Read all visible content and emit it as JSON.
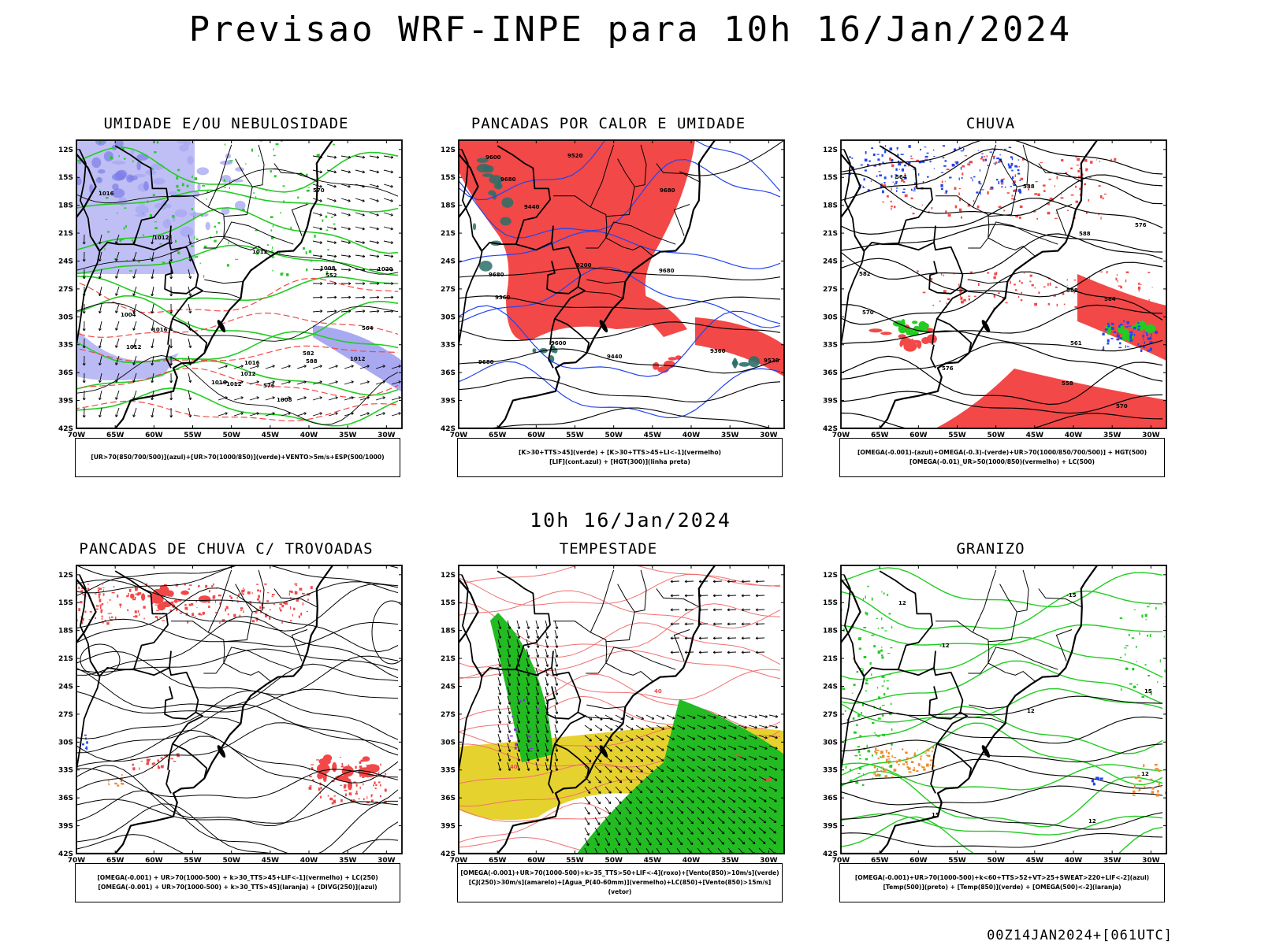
{
  "title": "Previsao WRF-INPE  para 10h 16/Jan/2024",
  "mid_title": "10h 16/Jan/2024",
  "footer": "00Z14JAN2024+[061UTC]",
  "axes": {
    "lat_labels": [
      "12S",
      "15S",
      "18S",
      "21S",
      "24S",
      "27S",
      "30S",
      "33S",
      "36S",
      "39S",
      "42S"
    ],
    "lon_labels": [
      "70W",
      "65W",
      "60W",
      "55W",
      "50W",
      "45W",
      "40W",
      "35W",
      "30W"
    ]
  },
  "colors": {
    "red": "#f24848",
    "green": "#22cc22",
    "blue": "#2244ee",
    "lavender": "#a9a9f2",
    "yellow": "#e6d22e",
    "orange": "#f08a2a",
    "teal": "#2d6e67",
    "purple": "#8a2be2"
  },
  "panels": [
    {
      "id": "umidade",
      "title": "UMIDADE E/OU NEBULOSIDADE",
      "legend": [
        "[UR>70(850/700/500)](azul)+[UR>70(1000/850)](verde)+VENTO>5m/s+ESP(500/1000)"
      ],
      "contour_labels": [
        "1016",
        "1016",
        "1012",
        "1016",
        "1020",
        "1012",
        "1012",
        "1004",
        "1008",
        "1012",
        "1016",
        "1012",
        "1012",
        "1008",
        "570",
        "576",
        "582",
        "588",
        "564",
        "552"
      ]
    },
    {
      "id": "pancadas_calor",
      "title": "PANCADAS POR CALOR E UMIDADE",
      "legend": [
        "[K>30+TTS>45](verde)  +  [K>30+TTS>45+LI<-1](vermelho)",
        "[LIF](cont.azul)  +  [HGT(300)](linha preta)"
      ],
      "contour_labels": [
        "9680",
        "9680",
        "9680",
        "9680",
        "9680",
        "9600",
        "9600",
        "9520",
        "9520",
        "9440",
        "9440",
        "9360",
        "9360",
        "9200"
      ]
    },
    {
      "id": "chuva",
      "title": "CHUVA",
      "legend": [
        "[OMEGA(-0.001)-(azul)+OMEGA(-0.3)-(verde)+UR>70(1000/850/700/500)]  +  HGT(500)",
        "[OMEGA(-0.01)_UR>50(1000/850)(vermelho)  +  LC(500)"
      ],
      "contour_labels": [
        "588",
        "588",
        "588",
        "582",
        "576",
        "576",
        "570",
        "570",
        "564",
        "564",
        "558",
        "561"
      ]
    },
    {
      "id": "pancadas_trovoadas",
      "title": "PANCADAS DE CHUVA C/ TROVOADAS",
      "legend": [
        "[OMEGA(-0.001)  +  UR>70(1000-500)  +  k>30_TTS>45+LIF<-1](vermelho)  +  LC(250)",
        "[OMEGA(-0.001)  +  UR>70(1000-500)  +  k>30_TTS>45](laranja)  +  [DIVG(250)](azul)"
      ],
      "contour_labels": []
    },
    {
      "id": "tempestade",
      "title": "TEMPESTADE",
      "legend": [
        "[OMEGA(-0.001)+UR>70(1000-500)+k>35_TTS>50+LIF<-4](roxo)+[Vento(850)>10m/s](verde)",
        "[CJ(250)>30m/s](amarelo)+[Agua_P(40-60mm)](vermelho)+LC(850)+[Vento(850)>15m/s](vetor)"
      ],
      "contour_labels": [
        "40",
        "40",
        "40",
        "50"
      ]
    },
    {
      "id": "granizo",
      "title": "GRANIZO",
      "legend": [
        "[OMEGA(-0.001)+UR>70(1000-500)+k<60+TTS>52+VT>25+SWEAT>220+LIF<-2](azul)",
        "[Temp(500)](preto)  +  [Temp(850)](verde)  +  [OMEGA(500)<-2](laranja)"
      ],
      "contour_labels": [
        "12",
        "12",
        "12",
        "15",
        "15",
        "-15",
        "-12",
        "12"
      ]
    }
  ]
}
